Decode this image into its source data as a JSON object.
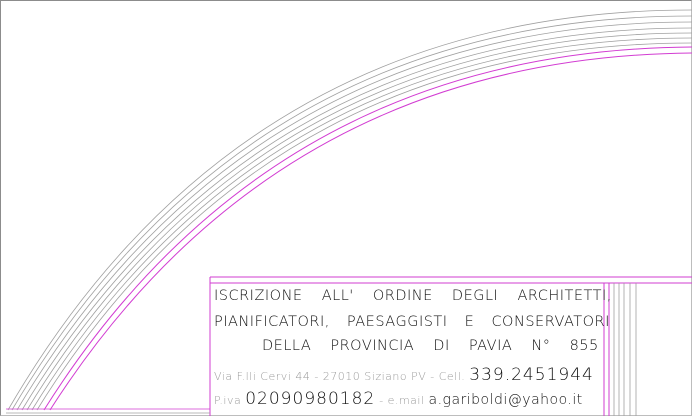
{
  "stamp": {
    "line1": "ISCRIZIONE  ALL' ORDINE  DEGLI  ARCHITETTI,",
    "line2": "PIANIFICATORI,  PAESAGGISTI  E  CONSERVATORI",
    "line3": "DELLA  PROVINCIA  DI  PAVIA  N°  855",
    "address": "Via F.lli Cervi 44 - 27010 Siziano PV - Cell. ",
    "cell": "339.2451944",
    "piva_label": "P.iva ",
    "piva": "02090980182",
    "email_label": " - e.mail ",
    "email": "a.gariboldi@yahoo.it"
  },
  "colors": {
    "arc_gray": "#9b9b9b",
    "arc_magenta": "#d23cd2",
    "border": "#8c8c8c"
  }
}
